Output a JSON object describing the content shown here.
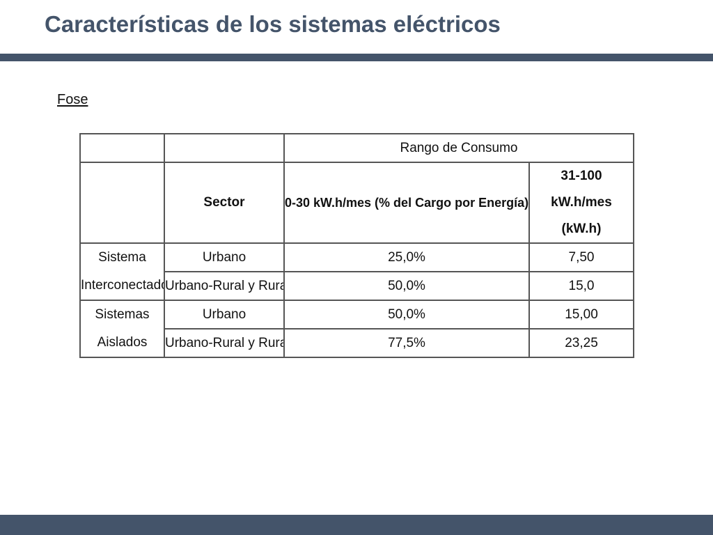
{
  "slide": {
    "title": "Características de los sistemas eléctricos",
    "subtitle": "Fose"
  },
  "table": {
    "header": {
      "range_label": "Rango de Consumo",
      "sector_label": "Sector",
      "col1_label": "0-30 kW.h/mes (% del Cargo por Energía)",
      "col2_label": "31-100 kW.h/mes (kW.h)"
    },
    "groups": [
      {
        "label": "Sistema Interconectado",
        "rows": [
          {
            "sector": "Urbano",
            "col1": "25,0%",
            "col2": "7,50"
          },
          {
            "sector": "Urbano-Rural y Rural",
            "col1": "50,0%",
            "col2": "15,0"
          }
        ]
      },
      {
        "label": "Sistemas Aislados",
        "rows": [
          {
            "sector": "Urbano",
            "col1": "50,0%",
            "col2": "15,00"
          },
          {
            "sector": "Urbano-Rural y Rural",
            "col1": "77,5%",
            "col2": "23,25"
          }
        ]
      }
    ]
  },
  "colors": {
    "accent": "#44546A",
    "text": "#111111",
    "grid": "#555555"
  }
}
